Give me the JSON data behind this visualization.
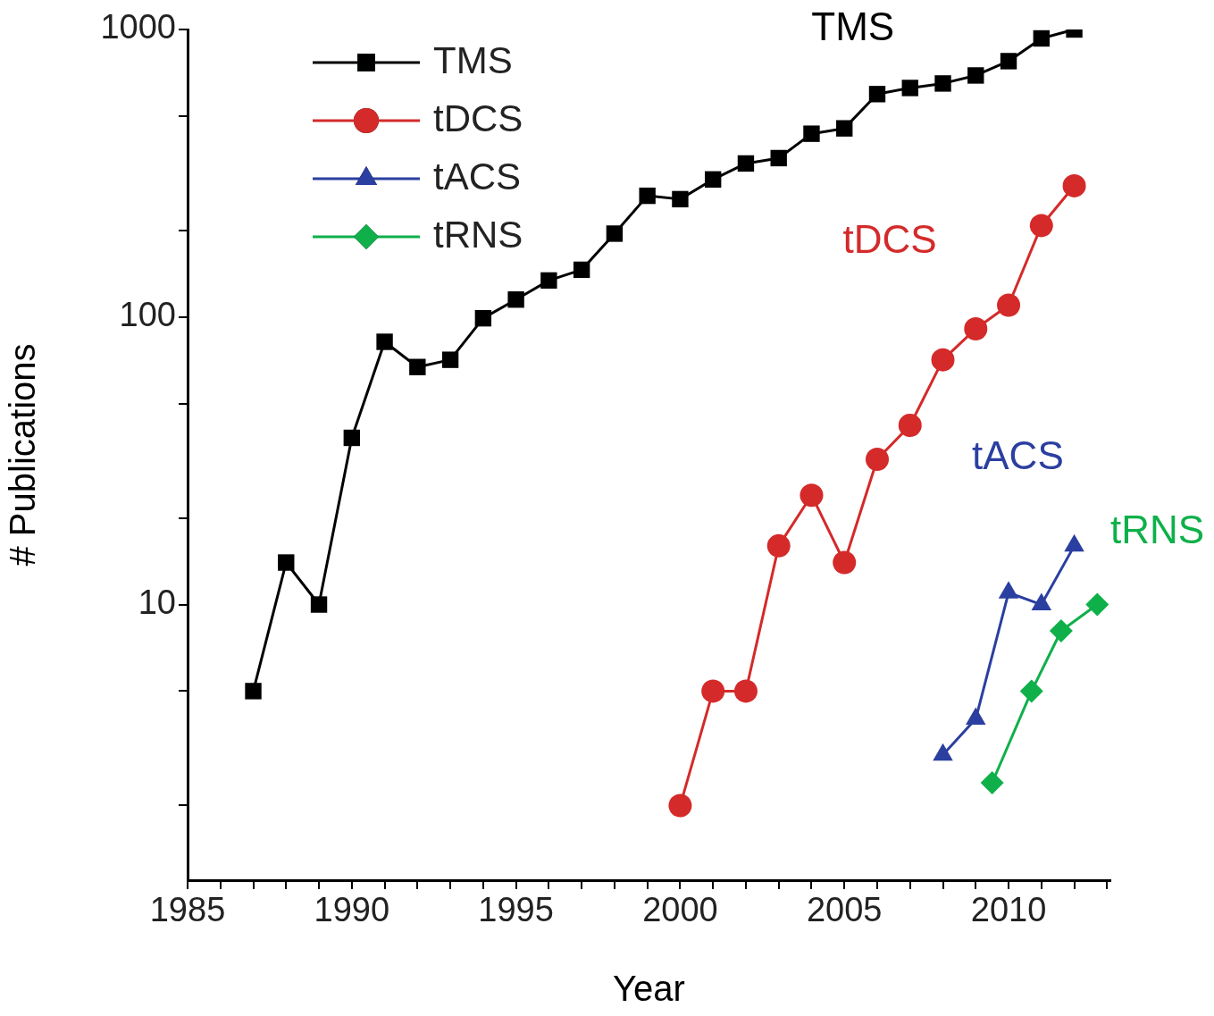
{
  "chart_data": {
    "type": "line",
    "xlabel": "Year",
    "ylabel": "# Publications",
    "log": "y",
    "grid": false,
    "legend": "top left",
    "line_style": "solid",
    "xlim": [
      1985,
      2013.1
    ],
    "ylim": [
      1.1,
      1000
    ],
    "xticks": [
      1985,
      {
        "value": 1986,
        "label": null
      },
      {
        "value": 1987,
        "label": null
      },
      {
        "value": 1988,
        "label": null
      },
      {
        "value": 1989,
        "label": null
      },
      1990,
      {
        "value": 1991,
        "label": null
      },
      {
        "value": 1992,
        "label": null
      },
      {
        "value": 1993,
        "label": null
      },
      {
        "value": 1994,
        "label": null
      },
      1995,
      {
        "value": 1996,
        "label": null
      },
      {
        "value": 1997,
        "label": null
      },
      {
        "value": 1998,
        "label": null
      },
      {
        "value": 1999,
        "label": null
      },
      2000,
      {
        "value": 2001,
        "label": null
      },
      {
        "value": 2002,
        "label": null
      },
      {
        "value": 2003,
        "label": null
      },
      {
        "value": 2004,
        "label": null
      },
      2005,
      {
        "value": 2006,
        "label": null
      },
      {
        "value": 2007,
        "label": null
      },
      {
        "value": 2008,
        "label": null
      },
      {
        "value": 2009,
        "label": null
      },
      2010,
      {
        "value": 2011,
        "label": null
      },
      {
        "value": 2012,
        "label": null
      },
      {
        "value": 2013,
        "label": null
      }
    ],
    "yticks": [
      {
        "value": 2,
        "label": null
      },
      {
        "value": 5,
        "label": null
      },
      10,
      {
        "value": 20,
        "label": null
      },
      {
        "value": 50,
        "label": null
      },
      100,
      {
        "value": 200,
        "label": null
      },
      {
        "value": 500,
        "label": null
      },
      1000
    ],
    "series": [
      {
        "name": "TMS",
        "color": "#000000",
        "marker": "square",
        "x": [
          1987,
          1988,
          1989,
          1990,
          1991,
          1992,
          1993,
          1994,
          1995,
          1996,
          1997,
          1998,
          1999,
          2000,
          2001,
          2002,
          2003,
          2004,
          2005,
          2006,
          2007,
          2008,
          2009,
          2010,
          2011,
          2012
        ],
        "values": [
          5,
          14,
          10,
          38,
          82,
          67,
          71,
          99,
          115,
          134,
          146,
          195,
          264,
          257,
          301,
          342,
          357,
          434,
          453,
          596,
          626,
          649,
          692,
          776,
          931,
          1000
        ]
      },
      {
        "name": "tDCS",
        "color": "#d42a2a",
        "marker": "circle",
        "x": [
          2000,
          2001,
          2002,
          2003,
          2004,
          2005,
          2006,
          2007,
          2008,
          2009,
          2010,
          2011,
          2012
        ],
        "values": [
          2,
          5,
          5,
          16,
          24,
          14,
          32,
          42,
          71,
          91,
          110,
          208,
          286
        ]
      },
      {
        "name": "tACS",
        "color": "#2b3fa0",
        "marker": "triangle",
        "x": [
          2008,
          2009,
          2010,
          2011,
          2012
        ],
        "values": [
          3,
          4,
          11,
          10,
          16
        ]
      },
      {
        "name": "tRNS",
        "color": "#0fb04a",
        "marker": "diamond",
        "x": [
          2009.5,
          2010.7,
          2011.6,
          2012.7
        ],
        "values": [
          2.4,
          5,
          8.1,
          10
        ]
      }
    ],
    "annotations": [
      "TMS",
      "tDCS",
      "tACS",
      "tRNS"
    ]
  }
}
